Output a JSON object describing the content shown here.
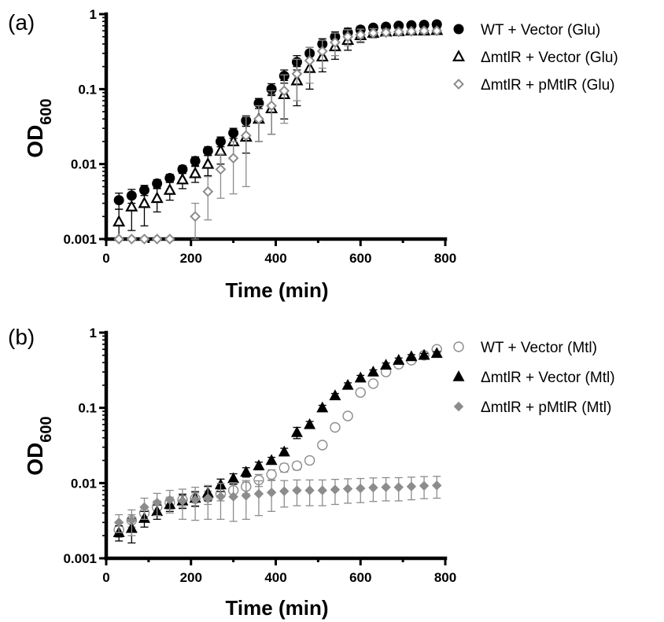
{
  "chart_data": [
    {
      "type": "scatter",
      "panel_label": "(a)",
      "xlabel": "Time (min)",
      "ylabel": "OD",
      "ylabel_sub": "600",
      "xlim": [
        0,
        800
      ],
      "ylim": [
        0.001,
        1
      ],
      "yscale": "log",
      "xticks": [
        0,
        200,
        400,
        600,
        800
      ],
      "yticks": [
        0.001,
        0.01,
        0.1,
        1
      ],
      "ytick_labels": [
        "0.001",
        "0.01",
        "0.1",
        "1"
      ],
      "legend_position": "right",
      "series": [
        {
          "name": "WT + Vector (Glu)",
          "marker": "circle-filled",
          "color": "#000000",
          "x": [
            30,
            60,
            90,
            120,
            150,
            180,
            210,
            240,
            270,
            300,
            330,
            360,
            390,
            420,
            450,
            480,
            510,
            540,
            570,
            600,
            630,
            660,
            690,
            720,
            750,
            780
          ],
          "y": [
            0.0033,
            0.0038,
            0.0045,
            0.0055,
            0.0065,
            0.0085,
            0.011,
            0.015,
            0.02,
            0.026,
            0.038,
            0.065,
            0.1,
            0.15,
            0.23,
            0.3,
            0.4,
            0.5,
            0.57,
            0.62,
            0.66,
            0.68,
            0.7,
            0.71,
            0.72,
            0.73
          ],
          "err": [
            0.0008,
            0.0008,
            0.0007,
            0.0007,
            0.0008,
            0.001,
            0.0015,
            0.002,
            0.003,
            0.004,
            0.006,
            0.01,
            0.018,
            0.03,
            0.05,
            0.06,
            0.07,
            0.08,
            0.08,
            0.07,
            0.06,
            0.05,
            0.04,
            0.04,
            0.03,
            0.03
          ]
        },
        {
          "name": "ΔmtlR + Vector (Glu)",
          "marker": "triangle-open",
          "color": "#000000",
          "x": [
            30,
            60,
            90,
            120,
            150,
            180,
            210,
            240,
            270,
            300,
            330,
            360,
            390,
            420,
            450,
            480,
            510,
            540,
            570,
            600,
            630,
            660,
            690,
            720,
            750,
            780
          ],
          "y": [
            0.0017,
            0.0027,
            0.003,
            0.0035,
            0.0045,
            0.0062,
            0.0075,
            0.01,
            0.015,
            0.02,
            0.023,
            0.04,
            0.055,
            0.085,
            0.13,
            0.19,
            0.27,
            0.37,
            0.45,
            0.52,
            0.56,
            0.58,
            0.59,
            0.6,
            0.6,
            0.61
          ],
          "err": [
            0.0008,
            0.0014,
            0.0015,
            0.0012,
            0.0012,
            0.0015,
            0.0018,
            0.003,
            0.005,
            0.008,
            0.009,
            0.02,
            0.03,
            0.045,
            0.07,
            0.09,
            0.1,
            0.12,
            0.12,
            0.1,
            0.08,
            0.06,
            0.05,
            0.05,
            0.04,
            0.04
          ]
        },
        {
          "name": "ΔmtlR + pMtlR (Glu)",
          "marker": "diamond-open",
          "color": "#8c8c8c",
          "x": [
            30,
            60,
            90,
            120,
            150,
            210,
            240,
            270,
            300,
            330,
            360,
            390,
            420,
            450,
            480,
            510,
            540,
            570,
            600,
            630,
            660,
            690,
            720,
            750,
            780
          ],
          "y": [
            0.001,
            0.001,
            0.001,
            0.001,
            0.001,
            0.002,
            0.0043,
            0.0085,
            0.012,
            0.024,
            0.04,
            0.06,
            0.095,
            0.16,
            0.24,
            0.32,
            0.42,
            0.5,
            0.53,
            0.56,
            0.57,
            0.58,
            0.59,
            0.6,
            0.6
          ],
          "err": [
            0,
            0,
            0,
            0,
            0,
            0.001,
            0.0025,
            0.005,
            0.008,
            0.019,
            0.02,
            0.035,
            0.06,
            0.09,
            0.12,
            0.13,
            0.14,
            0.12,
            0.1,
            0.08,
            0.06,
            0.05,
            0.04,
            0.04,
            0.03
          ]
        }
      ]
    },
    {
      "type": "scatter",
      "panel_label": "(b)",
      "xlabel": "Time (min)",
      "ylabel": "OD",
      "ylabel_sub": "600",
      "xlim": [
        0,
        800
      ],
      "ylim": [
        0.001,
        1
      ],
      "yscale": "log",
      "xticks": [
        0,
        200,
        400,
        600,
        800
      ],
      "yticks": [
        0.001,
        0.01,
        0.1,
        1
      ],
      "ytick_labels": [
        "0.001",
        "0.01",
        "0.1",
        "1"
      ],
      "legend_position": "right",
      "series": [
        {
          "name": "WT + Vector (Mtl)",
          "marker": "circle-open",
          "color": "#8c8c8c",
          "x": [
            30,
            60,
            90,
            120,
            150,
            180,
            210,
            240,
            270,
            300,
            330,
            360,
            390,
            420,
            450,
            480,
            510,
            540,
            570,
            600,
            630,
            660,
            690,
            720,
            750,
            780
          ],
          "y": [
            0.0024,
            0.0032,
            0.004,
            0.0048,
            0.0055,
            0.006,
            0.0062,
            0.0065,
            0.0072,
            0.008,
            0.009,
            0.011,
            0.013,
            0.016,
            0.017,
            0.02,
            0.032,
            0.055,
            0.078,
            0.16,
            0.21,
            0.3,
            0.38,
            0.43,
            0.5,
            0.6
          ],
          "err": [
            0.0005,
            0.0006,
            0.0008,
            0.001,
            0.001,
            0.0012,
            0.0012,
            0.0013,
            0.0014,
            0.0016,
            0.0018,
            0.002,
            0.002,
            0.002,
            0.002,
            0.002,
            0.003,
            0.005,
            0.006,
            0.01,
            0.015,
            0.02,
            0.02,
            0.03,
            0.03,
            0.03
          ]
        },
        {
          "name": "ΔmtlR + Vector (Mtl)",
          "marker": "triangle-filled",
          "color": "#000000",
          "x": [
            30,
            60,
            90,
            120,
            150,
            180,
            210,
            240,
            270,
            300,
            330,
            360,
            390,
            420,
            450,
            480,
            510,
            540,
            570,
            600,
            630,
            660,
            690,
            720,
            750,
            780
          ],
          "y": [
            0.0022,
            0.0025,
            0.0034,
            0.0042,
            0.0052,
            0.0058,
            0.0063,
            0.0074,
            0.0095,
            0.0115,
            0.014,
            0.017,
            0.02,
            0.026,
            0.047,
            0.06,
            0.1,
            0.145,
            0.2,
            0.25,
            0.3,
            0.37,
            0.43,
            0.48,
            0.5,
            0.53
          ],
          "err": [
            0.0005,
            0.0009,
            0.0008,
            0.0009,
            0.001,
            0.0012,
            0.0014,
            0.0016,
            0.0018,
            0.0018,
            0.002,
            0.002,
            0.002,
            0.003,
            0.008,
            0.006,
            0.008,
            0.01,
            0.015,
            0.02,
            0.02,
            0.025,
            0.03,
            0.03,
            0.03,
            0.03
          ]
        },
        {
          "name": "ΔmtlR + pMtlR (Mtl)",
          "marker": "diamond-filled",
          "color": "#8c8c8c",
          "x": [
            30,
            60,
            90,
            120,
            150,
            180,
            210,
            240,
            270,
            300,
            330,
            360,
            390,
            420,
            450,
            480,
            510,
            540,
            570,
            600,
            630,
            660,
            690,
            720,
            750,
            780
          ],
          "y": [
            0.003,
            0.0032,
            0.0048,
            0.0055,
            0.006,
            0.0058,
            0.006,
            0.0063,
            0.0066,
            0.0066,
            0.0068,
            0.0072,
            0.0075,
            0.0078,
            0.008,
            0.008,
            0.008,
            0.0082,
            0.0084,
            0.0085,
            0.0087,
            0.0088,
            0.0088,
            0.009,
            0.0092,
            0.0093
          ],
          "err": [
            0.0008,
            0.0012,
            0.0015,
            0.0018,
            0.002,
            0.0025,
            0.0028,
            0.003,
            0.0033,
            0.0035,
            0.0035,
            0.0035,
            0.0033,
            0.003,
            0.003,
            0.003,
            0.003,
            0.003,
            0.003,
            0.003,
            0.003,
            0.003,
            0.003,
            0.003,
            0.003,
            0.003
          ]
        }
      ]
    }
  ]
}
